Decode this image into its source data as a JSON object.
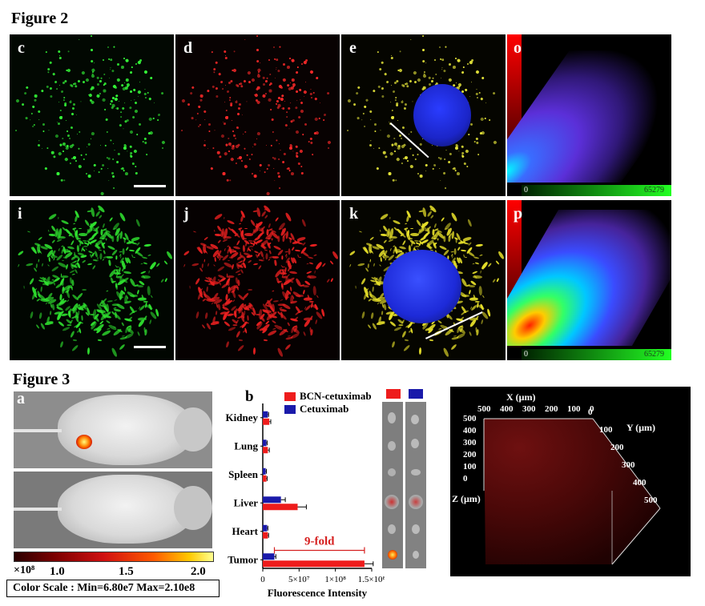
{
  "figure2": {
    "title": "Figure 2",
    "panels": [
      "c",
      "d",
      "e",
      "o",
      "i",
      "j",
      "k",
      "p"
    ],
    "scatter_axis_zero": "0",
    "scatter_axis_max": "65279"
  },
  "figure3": {
    "title": "Figure 3",
    "panel_a": "a",
    "panel_b": "b",
    "colorbar": {
      "unit": "×10⁸",
      "ticks": [
        "1.0",
        "1.5",
        "2.0"
      ],
      "scale_text": "Color Scale : Min=6.80e7 Max=2.10e8"
    },
    "panel_3d": {
      "x_label": "X (μm)",
      "y_label": "Y (μm)",
      "z_label": "Z (μm)",
      "x_ticks": [
        "500",
        "400",
        "300",
        "200",
        "100",
        "0"
      ],
      "y_ticks": [
        "0",
        "100",
        "200",
        "300",
        "400",
        "500"
      ],
      "z_ticks": [
        "500",
        "400",
        "300",
        "200",
        "100",
        "0"
      ]
    },
    "swatch_colors": [
      "#ff0000",
      "#0000cc"
    ]
  },
  "chart_data": {
    "type": "bar",
    "orientation": "horizontal",
    "categories": [
      "Kidney",
      "Lung",
      "Spleen",
      "Liver",
      "Heart",
      "Tumor"
    ],
    "series": [
      {
        "name": "BCN-cetuximab",
        "color": "#ee1c1c",
        "values": [
          9000000.0,
          7000000.0,
          5000000.0,
          48000000.0,
          7000000.0,
          140000000.0
        ],
        "errors": [
          2000000.0,
          2000000.0,
          1000000.0,
          12000000.0,
          1000000.0,
          12000000.0
        ]
      },
      {
        "name": "Cetuximab",
        "color": "#1a1aaa",
        "values": [
          7000000.0,
          5000000.0,
          4000000.0,
          25000000.0,
          6000000.0,
          16000000.0
        ],
        "errors": [
          1000000.0,
          1000000.0,
          1000000.0,
          6000000.0,
          1000000.0,
          2000000.0
        ]
      }
    ],
    "xlim": [
      0,
      150000000.0
    ],
    "x_tick_labels": [
      "0",
      "5×10⁷",
      "1×10⁸",
      "1.5×10⁸"
    ],
    "xlabel": "Fluorescence Intensity",
    "ylabel": "",
    "annotation": "9-fold"
  }
}
